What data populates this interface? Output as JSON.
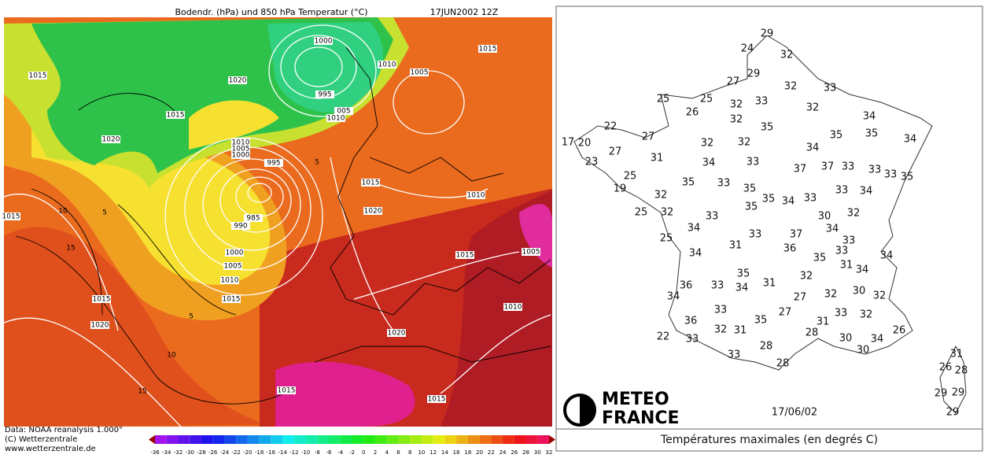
{
  "left": {
    "title": "Bodendr. (hPa) und 850 hPa Temperatur (°C)",
    "date": "17JUN2002 12Z",
    "credits": [
      "Data: NOAA reanalysis 1.000°",
      "(C) Wetterzentrale",
      "www.wetterzentrale.de"
    ],
    "pressure_labels": [
      1000,
      1015,
      1010,
      1005,
      1015,
      1020,
      995,
      "005",
      1010,
      1015,
      1020,
      1010,
      1005,
      1000,
      995,
      1015,
      1010,
      1020,
      985,
      990,
      1015,
      1015,
      1005,
      1000,
      1005,
      1010,
      1015,
      1015,
      1010,
      1020,
      1020,
      1015,
      1015
    ],
    "contour_labels": [
      10,
      5,
      15,
      5,
      10,
      15,
      5
    ],
    "colorbar_ticks": [
      -36,
      -34,
      -32,
      -30,
      -28,
      -26,
      -24,
      -22,
      -20,
      -18,
      -16,
      -14,
      -12,
      -10,
      -8,
      -6,
      -4,
      -2,
      0,
      2,
      4,
      6,
      8,
      10,
      12,
      14,
      16,
      18,
      20,
      22,
      24,
      26,
      28,
      30,
      32
    ]
  },
  "right": {
    "temperatures": [
      29,
      24,
      32,
      27,
      29,
      32,
      33,
      25,
      25,
      32,
      33,
      32,
      26,
      32,
      35,
      34,
      22,
      27,
      35,
      35,
      34,
      17,
      20,
      27,
      32,
      32,
      34,
      31,
      34,
      33,
      37,
      37,
      33,
      33,
      33,
      35,
      23,
      25,
      35,
      33,
      19,
      32,
      35,
      35,
      34,
      33,
      33,
      34,
      25,
      32,
      33,
      35,
      30,
      32,
      34,
      34,
      25,
      33,
      37,
      33,
      31,
      36,
      33,
      34,
      35,
      34,
      31,
      34,
      35,
      32,
      36,
      33,
      34,
      31,
      34,
      27,
      32,
      30,
      32,
      27,
      33,
      32,
      33,
      36,
      35,
      31,
      32,
      31,
      28,
      26,
      22,
      33,
      30,
      34,
      28,
      30,
      33,
      28,
      31,
      26,
      28,
      29,
      29,
      29
    ],
    "logo": [
      "METEO",
      "FRANCE"
    ],
    "date": "17/06/02",
    "caption": "Températures maximales (en degrés C)"
  }
}
